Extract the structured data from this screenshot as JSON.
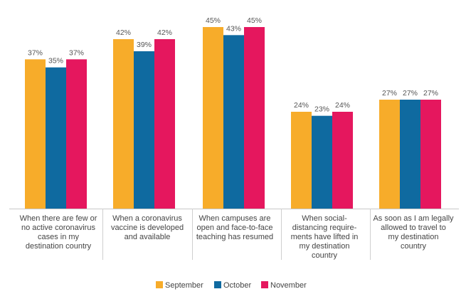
{
  "chart_data": {
    "type": "bar",
    "title": "",
    "xlabel": "",
    "ylabel": "",
    "ylim": [
      0,
      47
    ],
    "grid": false,
    "legend_position": "bottom",
    "value_suffix": "%",
    "categories": [
      [
        "When there are few or",
        "no active coronavirus",
        "cases in my",
        "destination country"
      ],
      [
        "When a coronavirus",
        "vaccine is developed",
        "and available"
      ],
      [
        "When campuses are",
        "open and face-to-face",
        "teaching has resumed"
      ],
      [
        "When social-",
        "distancing require-",
        "ments have lifted in",
        "my destination",
        "country"
      ],
      [
        "As soon as I am legally",
        "allowed to travel to",
        "my destination",
        "country"
      ]
    ],
    "series": [
      {
        "name": "September",
        "color": "#f7ac2a",
        "values": [
          37,
          42,
          45,
          24,
          27
        ]
      },
      {
        "name": "October",
        "color": "#0f6aa0",
        "values": [
          35,
          39,
          43,
          23,
          27
        ]
      },
      {
        "name": "November",
        "color": "#e5175e",
        "values": [
          37,
          42,
          45,
          24,
          27
        ]
      }
    ]
  }
}
